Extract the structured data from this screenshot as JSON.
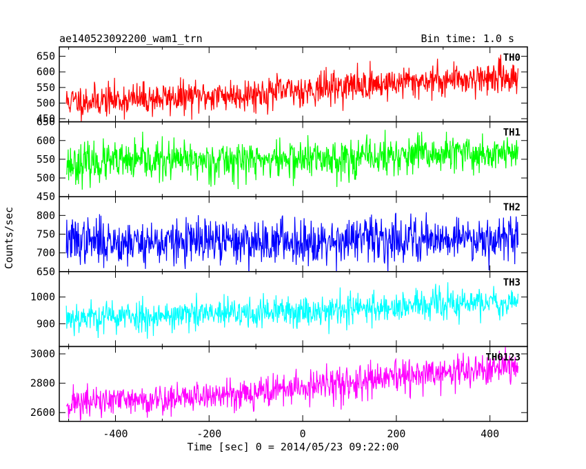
{
  "figure": {
    "title_left": "ae140523092200_wam1_trn",
    "title_right": "Bin time: 1.0 s",
    "xlabel": "Time [sec] 0 = 2014/05/23 09:22:00",
    "ylabel": "Counts/sec"
  },
  "chart_data": [
    {
      "type": "line",
      "name": "TH0",
      "color": "#ff0000",
      "x_range": [
        -505,
        460
      ],
      "xlim": [
        -520,
        480
      ],
      "ylim": [
        440,
        680
      ],
      "yticks": [
        450,
        500,
        550,
        600,
        650
      ],
      "trend": {
        "x": [
          -505,
          -300,
          -100,
          100,
          300,
          460
        ],
        "y": [
          505,
          515,
          530,
          555,
          575,
          585
        ]
      },
      "noise_sd": 26,
      "seed": 11
    },
    {
      "type": "line",
      "name": "TH1",
      "color": "#00ff00",
      "x_range": [
        -505,
        460
      ],
      "xlim": [
        -520,
        480
      ],
      "ylim": [
        450,
        650
      ],
      "yticks": [
        450,
        500,
        550,
        600,
        650
      ],
      "trend": {
        "x": [
          -505,
          -300,
          -100,
          100,
          300,
          460
        ],
        "y": [
          538,
          545,
          548,
          553,
          563,
          566
        ]
      },
      "noise_sd": 26,
      "seed": 23
    },
    {
      "type": "line",
      "name": "TH2",
      "color": "#0000ff",
      "x_range": [
        -505,
        460
      ],
      "xlim": [
        -520,
        480
      ],
      "ylim": [
        650,
        850
      ],
      "yticks": [
        650,
        700,
        750,
        800
      ],
      "trend": {
        "x": [
          -505,
          -300,
          -100,
          100,
          300,
          460
        ],
        "y": [
          732,
          728,
          730,
          735,
          740,
          742
        ]
      },
      "noise_sd": 30,
      "seed": 37
    },
    {
      "type": "line",
      "name": "TH3",
      "color": "#00ffff",
      "x_range": [
        -505,
        460
      ],
      "xlim": [
        -520,
        480
      ],
      "ylim": [
        815,
        1095
      ],
      "yticks": [
        900,
        1000
      ],
      "trend": {
        "x": [
          -505,
          -300,
          -100,
          100,
          300,
          460
        ],
        "y": [
          925,
          930,
          940,
          955,
          972,
          985
        ]
      },
      "noise_sd": 30,
      "seed": 53
    },
    {
      "type": "line",
      "name": "TH0123",
      "color": "#ff00ff",
      "x_range": [
        -505,
        460
      ],
      "xlim": [
        -520,
        480
      ],
      "ylim": [
        2540,
        3050
      ],
      "yticks": [
        2600,
        2800,
        3000
      ],
      "trend": {
        "x": [
          -505,
          -300,
          -100,
          100,
          300,
          460
        ],
        "y": [
          2665,
          2690,
          2740,
          2800,
          2870,
          2905
        ]
      },
      "noise_sd": 55,
      "seed": 71
    }
  ],
  "xaxis": {
    "ticks": [
      -400,
      -200,
      0,
      200,
      400
    ],
    "minor_step": 100
  }
}
